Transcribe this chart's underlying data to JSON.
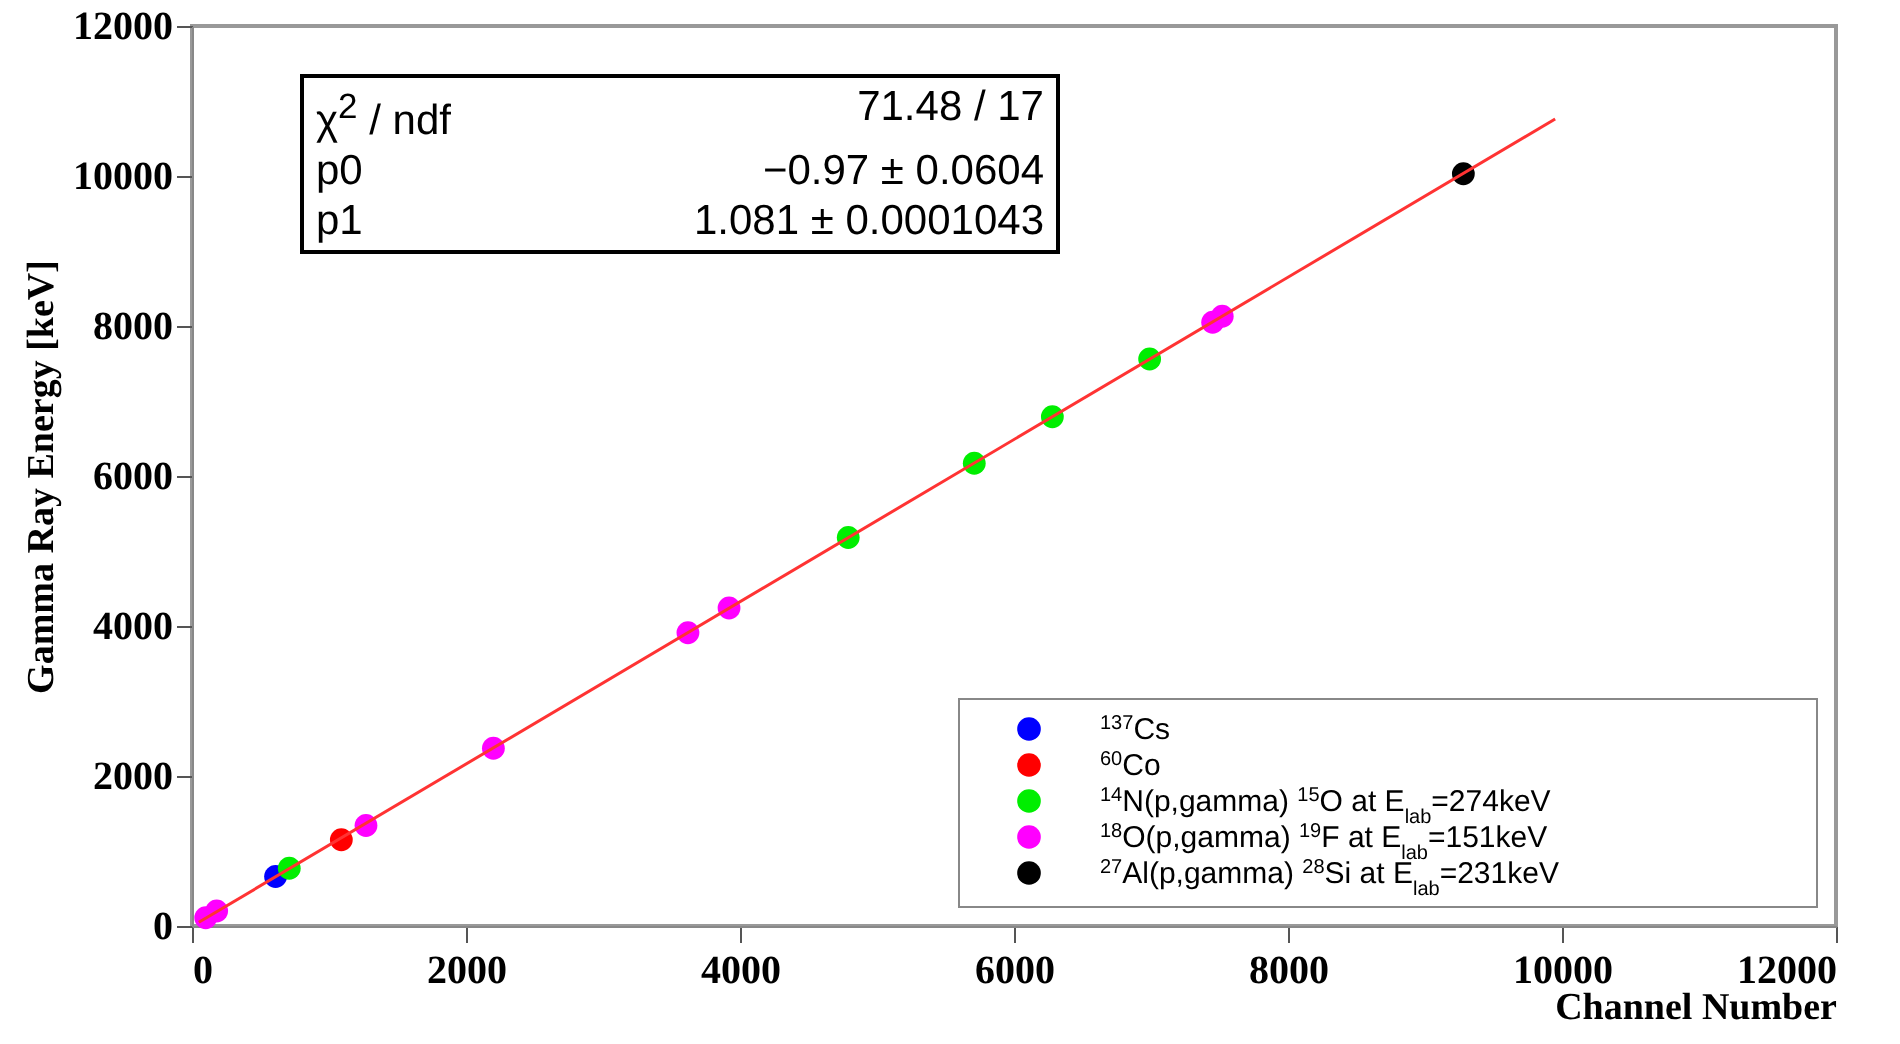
{
  "chart_data": {
    "type": "scatter",
    "xlabel": "Channel Number",
    "ylabel": "Gamma Ray Energy [keV]",
    "annotations": [
      "χ$^{2}$ / ndf",
      "71.48 / 17",
      "p0",
      "−0.97 ± 0.0604",
      "p1",
      "1.081 ± 0.0001043"
    ],
    "xlim": [
      0,
      12000
    ],
    "ylim": [
      0,
      12000
    ],
    "xticks": [
      0,
      2000,
      4000,
      6000,
      8000,
      10000,
      12000
    ],
    "yticks": [
      0,
      2000,
      4000,
      6000,
      8000,
      10000,
      12000
    ],
    "marker": "circle",
    "legend": "bottom right",
    "series": [
      {
        "type": "line",
        "marker": "none",
        "color": "#ff3333",
        "x": [
          50,
          9950
        ],
        "values": [
          50,
          10760
        ]
      },
      {
        "name": "$^{137}$Cs",
        "color": "#0000ff",
        "x": [
          610
        ],
        "values": [
          660
        ]
      },
      {
        "name": "$^{60}$Co",
        "color": "#ff0000",
        "x": [
          1090
        ],
        "values": [
          1150
        ]
      },
      {
        "name": "$^{14}$N(p,gamma) $^{15}$O at E$_{lab}$=274keV",
        "color": "#00ee00",
        "x": [
          710,
          4790,
          5710,
          6280,
          6990
        ],
        "values": [
          770,
          5180,
          6170,
          6790,
          7560
        ]
      },
      {
        "name": "$^{18}$O(p,gamma) $^{19}$F at E$_{lab}$=151keV",
        "color": "#ff00ff",
        "x": [
          100,
          180,
          1270,
          2200,
          3620,
          3920,
          7450,
          7520
        ],
        "values": [
          110,
          200,
          1340,
          2370,
          3910,
          4240,
          8050,
          8130
        ]
      },
      {
        "name": "$^{27}$Al(p,gamma) $^{28}$Si at E$_{lab}$=231keV",
        "color": "#000000",
        "x": [
          9280
        ],
        "values": [
          10030
        ]
      }
    ]
  }
}
